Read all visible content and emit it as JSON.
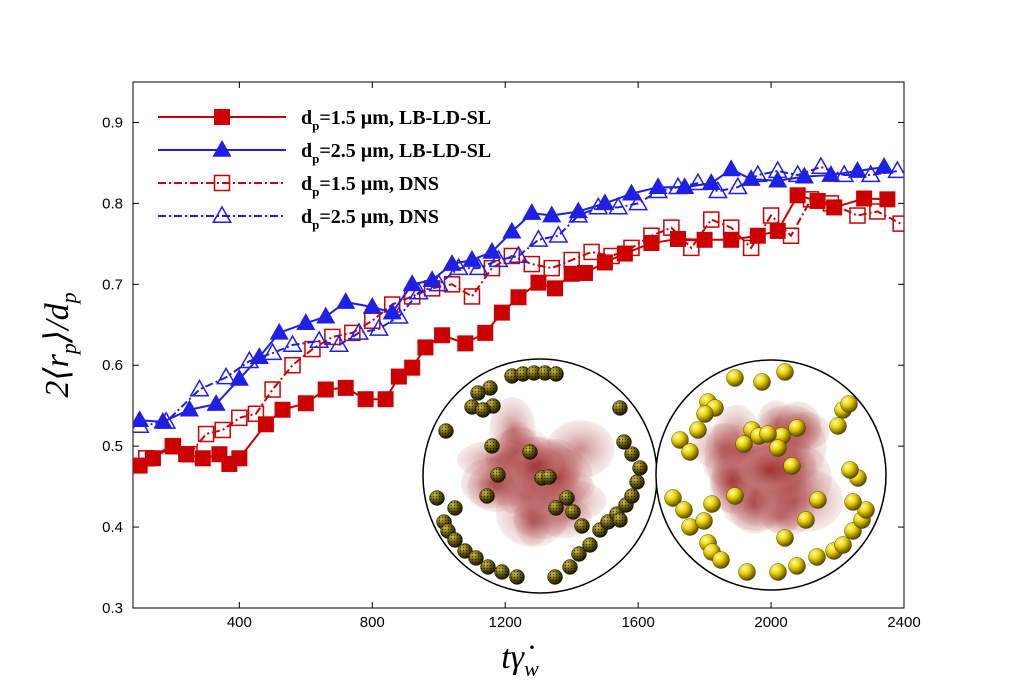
{
  "chart_data": {
    "type": "scatter",
    "title": "",
    "xlabel": "tγ̇",
    "xlabel_sub": "w",
    "ylabel_prefix": "2⟨r",
    "ylabel_sub_p": "p",
    "ylabel_mid": "⟩/d",
    "ylabel_sub_d": "p",
    "xlim": [
      80,
      2400
    ],
    "ylim": [
      0.3,
      0.95
    ],
    "xticks": [
      400,
      800,
      1200,
      1600,
      2000,
      2400
    ],
    "xtick_labels": [
      "400",
      "800",
      "1200",
      "1600",
      "2000",
      "2400"
    ],
    "yticks": [
      0.3,
      0.4,
      0.5,
      0.6,
      0.7,
      0.8,
      0.9
    ],
    "ytick_labels": [
      "0.3",
      "0.4",
      "0.5",
      "0.6",
      "0.7",
      "0.8",
      "0.9"
    ],
    "legend_position": "top-left",
    "series": [
      {
        "name": "LB-LD-SL 1.5",
        "legend_base": "d",
        "legend_sub": "p",
        "legend_rest": "=1.5 µm, LB-LD-SL",
        "color": "#cc0000",
        "marker": "square-filled",
        "line": "solid",
        "x": [
          100,
          140,
          200,
          240,
          290,
          340,
          370,
          400,
          480,
          530,
          600,
          660,
          720,
          780,
          840,
          880,
          920,
          960,
          1010,
          1080,
          1140,
          1190,
          1240,
          1300,
          1350,
          1400,
          1440,
          1500,
          1560,
          1640,
          1720,
          1800,
          1880,
          1960,
          2020,
          2080,
          2140,
          2190,
          2280,
          2350
        ],
        "y": [
          0.476,
          0.485,
          0.5,
          0.49,
          0.485,
          0.49,
          0.478,
          0.485,
          0.527,
          0.545,
          0.553,
          0.57,
          0.572,
          0.558,
          0.558,
          0.586,
          0.597,
          0.622,
          0.637,
          0.627,
          0.64,
          0.665,
          0.684,
          0.702,
          0.695,
          0.713,
          0.714,
          0.727,
          0.738,
          0.751,
          0.756,
          0.755,
          0.755,
          0.76,
          0.766,
          0.81,
          0.803,
          0.795,
          0.806,
          0.805
        ]
      },
      {
        "name": "LB-LD-SL 2.5",
        "legend_base": "d",
        "legend_sub": "p",
        "legend_rest": "=2.5 µm, LB-LD-SL",
        "color": "#1f1fe6",
        "marker": "triangle-filled",
        "line": "solid",
        "x": [
          100,
          170,
          250,
          330,
          400,
          460,
          520,
          600,
          660,
          720,
          800,
          860,
          920,
          980,
          1040,
          1100,
          1160,
          1220,
          1280,
          1340,
          1420,
          1500,
          1580,
          1660,
          1740,
          1820,
          1880,
          1940,
          2020,
          2100,
          2180,
          2260,
          2340
        ],
        "y": [
          0.532,
          0.53,
          0.545,
          0.552,
          0.583,
          0.61,
          0.64,
          0.652,
          0.66,
          0.678,
          0.672,
          0.665,
          0.7,
          0.705,
          0.725,
          0.73,
          0.74,
          0.765,
          0.788,
          0.785,
          0.79,
          0.8,
          0.812,
          0.82,
          0.82,
          0.825,
          0.842,
          0.83,
          0.828,
          0.833,
          0.835,
          0.84,
          0.845
        ]
      },
      {
        "name": "DNS 1.5",
        "legend_base": "d",
        "legend_sub": "p",
        "legend_rest": "=1.5 µm, DNS",
        "color": "#cc0000",
        "marker": "square-open",
        "line": "dashdot",
        "x": [
          120,
          200,
          250,
          300,
          350,
          400,
          450,
          500,
          560,
          620,
          680,
          740,
          800,
          860,
          920,
          980,
          1040,
          1100,
          1160,
          1220,
          1280,
          1340,
          1400,
          1460,
          1520,
          1580,
          1640,
          1700,
          1760,
          1820,
          1880,
          1940,
          2000,
          2060,
          2120,
          2180,
          2260,
          2320,
          2390
        ],
        "y": [
          0.485,
          0.5,
          0.49,
          0.515,
          0.52,
          0.535,
          0.54,
          0.57,
          0.6,
          0.62,
          0.635,
          0.64,
          0.655,
          0.675,
          0.685,
          0.695,
          0.7,
          0.685,
          0.72,
          0.735,
          0.725,
          0.72,
          0.73,
          0.74,
          0.735,
          0.745,
          0.76,
          0.77,
          0.745,
          0.78,
          0.77,
          0.745,
          0.785,
          0.76,
          0.805,
          0.8,
          0.785,
          0.79,
          0.775
        ]
      },
      {
        "name": "DNS 2.5",
        "legend_base": "d",
        "legend_sub": "p",
        "legend_rest": "=2.5 µm, DNS",
        "color": "#1f1fe6",
        "marker": "triangle-open",
        "line": "dashdot",
        "x": [
          100,
          180,
          280,
          360,
          430,
          500,
          560,
          640,
          700,
          760,
          820,
          880,
          940,
          1000,
          1060,
          1120,
          1180,
          1240,
          1300,
          1360,
          1420,
          1480,
          1540,
          1600,
          1660,
          1720,
          1780,
          1840,
          1900,
          1960,
          2020,
          2080,
          2150,
          2220,
          2300,
          2380
        ],
        "y": [
          0.525,
          0.53,
          0.57,
          0.585,
          0.605,
          0.615,
          0.625,
          0.63,
          0.625,
          0.64,
          0.645,
          0.66,
          0.69,
          0.7,
          0.72,
          0.72,
          0.73,
          0.735,
          0.755,
          0.76,
          0.785,
          0.795,
          0.795,
          0.8,
          0.815,
          0.82,
          0.825,
          0.815,
          0.82,
          0.835,
          0.84,
          0.835,
          0.845,
          0.835,
          0.835,
          0.84
        ]
      }
    ],
    "insets": [
      {
        "name": "inset-cross-section-1.5um",
        "particle_style": "dark-textured"
      },
      {
        "name": "inset-cross-section-2.5um",
        "particle_style": "yellow-glossy"
      }
    ]
  }
}
